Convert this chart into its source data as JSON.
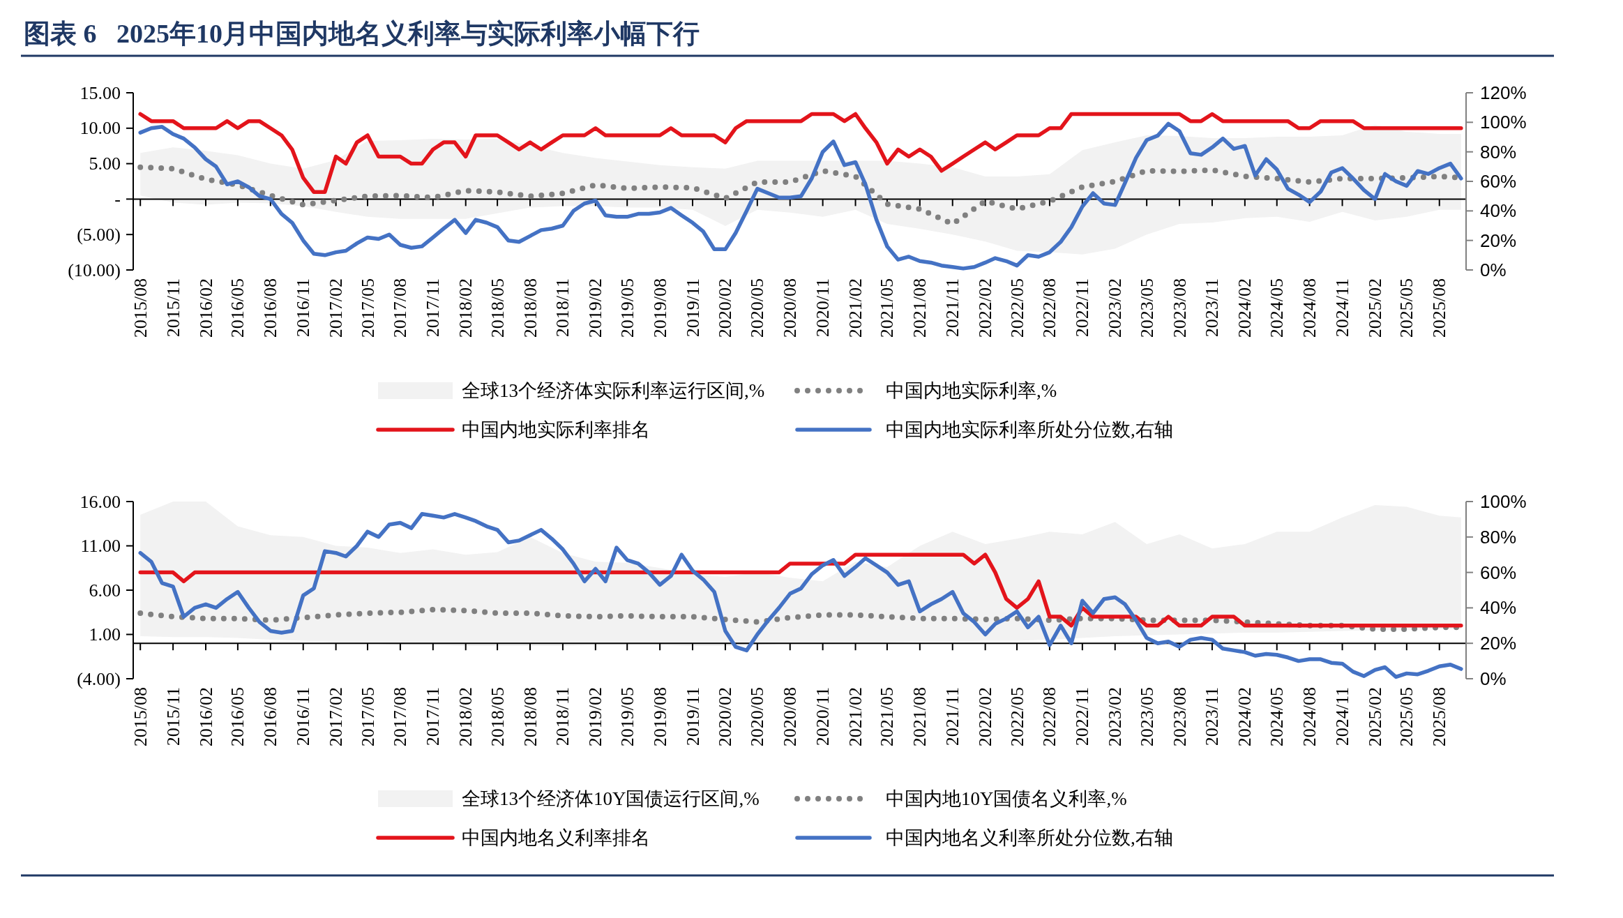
{
  "chart_data": [
    {
      "type": "line",
      "title": "图表 6   2025年10月中国内地名义利率与实际利率小幅下行",
      "x": [
        "2015-08",
        "2015-09",
        "2015-10",
        "2015-11",
        "2015-12",
        "2016-01",
        "2016-02",
        "2016-03",
        "2016-04",
        "2016-05",
        "2016-06",
        "2016-07",
        "2016-08",
        "2016-09",
        "2016-10",
        "2016-11",
        "2016-12",
        "2017-01",
        "2017-02",
        "2017-03",
        "2017-04",
        "2017-05",
        "2017-06",
        "2017-07",
        "2017-08",
        "2017-09",
        "2017-10",
        "2017-11",
        "2017-12",
        "2018-01",
        "2018-02",
        "2018-03",
        "2018-04",
        "2018-05",
        "2018-06",
        "2018-07",
        "2018-08",
        "2018-09",
        "2018-10",
        "2018-11",
        "2018-12",
        "2019-01",
        "2019-02",
        "2019-03",
        "2019-04",
        "2019-05",
        "2019-06",
        "2019-07",
        "2019-08",
        "2019-09",
        "2019-10",
        "2019-11",
        "2019-12",
        "2020-01",
        "2020-02",
        "2020-03",
        "2020-04",
        "2020-05",
        "2020-06",
        "2020-07",
        "2020-08",
        "2020-09",
        "2020-10",
        "2020-11",
        "2020-12",
        "2021-01",
        "2021-02",
        "2021-03",
        "2021-04",
        "2021-05",
        "2021-06",
        "2021-07",
        "2021-08",
        "2021-09",
        "2021-10",
        "2021-11",
        "2021-12",
        "2022-01",
        "2022-02",
        "2022-03",
        "2022-04",
        "2022-05",
        "2022-06",
        "2022-07",
        "2022-08",
        "2022-09",
        "2022-10",
        "2022-11",
        "2022-12",
        "2023-01",
        "2023-02",
        "2023-03",
        "2023-04",
        "2023-05",
        "2023-06",
        "2023-07",
        "2023-08",
        "2023-09",
        "2023-10",
        "2023-11",
        "2023-12",
        "2024-01",
        "2024-02",
        "2024-03",
        "2024-04",
        "2024-05",
        "2024-06",
        "2024-07",
        "2024-08",
        "2024-09",
        "2024-10",
        "2024-11",
        "2024-12",
        "2025-01",
        "2025-02",
        "2025-03",
        "2025-04",
        "2025-05",
        "2025-06",
        "2025-07",
        "2025-08",
        "2025-09",
        "2025-10"
      ],
      "xlim": [
        "2015-07-12",
        "2025-10-15"
      ],
      "xticks": [
        {
          "value": "2015-08",
          "label": "2015/08"
        },
        {
          "value": "2015-11",
          "label": "2015/11"
        },
        {
          "value": "2016-02",
          "label": "2016/02"
        },
        {
          "value": "2016-05",
          "label": "2016/05"
        },
        {
          "value": "2016-08",
          "label": "2016/08"
        },
        {
          "value": "2016-11",
          "label": "2016/11"
        },
        {
          "value": "2017-02",
          "label": "2017/02"
        },
        {
          "value": "2017-05",
          "label": "2017/05"
        },
        {
          "value": "2017-08",
          "label": "2017/08"
        },
        {
          "value": "2017-11",
          "label": "2017/11"
        },
        {
          "value": "2018-02",
          "label": "2018/02"
        },
        {
          "value": "2018-05",
          "label": "2018/05"
        },
        {
          "value": "2018-08",
          "label": "2018/08"
        },
        {
          "value": "2018-11",
          "label": "2018/11"
        },
        {
          "value": "2019-02",
          "label": "2019/02"
        },
        {
          "value": "2019-05",
          "label": "2019/05"
        },
        {
          "value": "2019-08",
          "label": "2019/08"
        },
        {
          "value": "2019-11",
          "label": "2019/11"
        },
        {
          "value": "2020-02",
          "label": "2020/02"
        },
        {
          "value": "2020-05",
          "label": "2020/05"
        },
        {
          "value": "2020-08",
          "label": "2020/08"
        },
        {
          "value": "2020-11",
          "label": "2020/11"
        },
        {
          "value": "2021-02",
          "label": "2021/02"
        },
        {
          "value": "2021-05",
          "label": "2021/05"
        },
        {
          "value": "2021-08",
          "label": "2021/08"
        },
        {
          "value": "2021-11",
          "label": "2021/11"
        },
        {
          "value": "2022-02",
          "label": "2022/02"
        },
        {
          "value": "2022-05",
          "label": "2022/05"
        },
        {
          "value": "2022-08",
          "label": "2022/08"
        },
        {
          "value": "2022-11",
          "label": "2022/11"
        },
        {
          "value": "2023-02",
          "label": "2023/02"
        },
        {
          "value": "2023-05",
          "label": "2023/05"
        },
        {
          "value": "2023-08",
          "label": "2023/08"
        },
        {
          "value": "2023-11",
          "label": "2023/11"
        },
        {
          "value": "2024-02",
          "label": "2024/02"
        },
        {
          "value": "2024-05",
          "label": "2024/05"
        },
        {
          "value": "2024-08",
          "label": "2024/08"
        },
        {
          "value": "2024-11",
          "label": "2024/11"
        },
        {
          "value": "2025-02",
          "label": "2025/02"
        },
        {
          "value": "2025-05",
          "label": "2025/05"
        },
        {
          "value": "2025-08",
          "label": "2025/08"
        }
      ],
      "ylim": [
        -10,
        15
      ],
      "yticks": [
        {
          "value": -10,
          "label": "(10.00)"
        },
        {
          "value": -5,
          "label": "(5.00)"
        },
        {
          "value": 0,
          "label": "-"
        },
        {
          "value": 5,
          "label": "5.00"
        },
        {
          "value": 10,
          "label": "10.00"
        },
        {
          "value": 15,
          "label": "15.00"
        }
      ],
      "y2lim": [
        0,
        120
      ],
      "y2ticks": [
        {
          "value": 0,
          "label": "0%"
        },
        {
          "value": 20,
          "label": "20%"
        },
        {
          "value": 40,
          "label": "40%"
        },
        {
          "value": 60,
          "label": "60%"
        },
        {
          "value": 80,
          "label": "80%"
        },
        {
          "value": 100,
          "label": "100%"
        },
        {
          "value": 120,
          "label": "120%"
        }
      ],
      "legend": "bottom",
      "series": [
        {
          "type": "line",
          "name": "全球13个经济体实际利率运行区间,%",
          "color": "#f2f2f2",
          "x": [
            "2015-08",
            "2015-11",
            "2016-02",
            "2016-05",
            "2016-08",
            "2016-11",
            "2017-02",
            "2017-05",
            "2017-08",
            "2017-11",
            "2018-02",
            "2018-05",
            "2018-08",
            "2018-11",
            "2019-02",
            "2019-05",
            "2019-08",
            "2019-11",
            "2020-02",
            "2020-05",
            "2020-08",
            "2020-11",
            "2021-02",
            "2021-05",
            "2021-08",
            "2021-11",
            "2022-02",
            "2022-05",
            "2022-08",
            "2022-11",
            "2023-02",
            "2023-05",
            "2023-08",
            "2023-11",
            "2024-02",
            "2024-05",
            "2024-08",
            "2024-11",
            "2025-02",
            "2025-05",
            "2025-08",
            "2025-10"
          ],
          "lower": [
            0.5,
            -0.5,
            -0.8,
            -0.5,
            -0.6,
            -1.0,
            -1.8,
            -2.5,
            -2.8,
            -2.8,
            -2.8,
            -2.0,
            -1.2,
            -1.0,
            -1.0,
            -1.2,
            -1.2,
            -1.5,
            -3.8,
            -1.5,
            -1.9,
            -2.5,
            -1.5,
            -3.5,
            -4.2,
            -5.0,
            -6.0,
            -7.3,
            -7.5,
            -7.8,
            -7.0,
            -5.0,
            -3.5,
            -3.3,
            -2.7,
            -2.5,
            -3.2,
            -1.8,
            -3.0,
            -2.5,
            -1.5,
            -1.5
          ],
          "values": [
            null,
            null,
            null,
            null,
            null,
            null,
            null,
            null,
            null,
            null,
            null,
            null,
            null,
            null,
            null,
            null,
            null,
            null,
            null,
            null,
            null,
            null,
            null,
            null,
            null,
            null,
            null,
            null,
            null,
            null,
            null,
            null,
            null,
            null,
            null,
            null,
            null,
            null,
            null,
            null,
            null,
            null
          ],
          "upper": [
            6.5,
            7.3,
            6.8,
            6.2,
            5.0,
            4.3,
            5.5,
            8.2,
            8.3,
            8.5,
            8.4,
            8.5,
            7.6,
            6.5,
            5.8,
            5.3,
            4.8,
            4.5,
            4.3,
            5.4,
            5.4,
            5.4,
            5.4,
            5.4,
            5.0,
            4.5,
            3.2,
            3.2,
            3.5,
            6.9,
            8.0,
            9.0,
            8.9,
            8.6,
            8.6,
            8.8,
            8.8,
            9.0,
            10.5,
            9.5,
            9.2,
            9.2
          ]
        },
        {
          "type": "line",
          "name": "中国内地实际利率,%",
          "color": "#808080",
          "line_style": "dotted",
          "x": [
            "2015-08",
            "2015-11",
            "2016-02",
            "2016-05",
            "2016-08",
            "2016-11",
            "2017-02",
            "2017-05",
            "2017-08",
            "2017-11",
            "2018-02",
            "2018-05",
            "2018-08",
            "2018-11",
            "2019-02",
            "2019-05",
            "2019-08",
            "2019-11",
            "2020-02",
            "2020-05",
            "2020-08",
            "2020-11",
            "2021-02",
            "2021-05",
            "2021-08",
            "2021-11",
            "2022-02",
            "2022-05",
            "2022-08",
            "2022-11",
            "2023-02",
            "2023-05",
            "2023-08",
            "2023-11",
            "2024-02",
            "2024-05",
            "2024-08",
            "2024-11",
            "2025-02",
            "2025-05",
            "2025-08",
            "2025-10"
          ],
          "values": [
            4.5,
            4.3,
            2.8,
            2.0,
            0.5,
            -0.8,
            -0.2,
            0.4,
            0.5,
            0.2,
            1.2,
            1.0,
            0.4,
            0.8,
            2.0,
            1.5,
            1.7,
            1.6,
            0.1,
            2.4,
            2.4,
            4.0,
            3.2,
            -0.7,
            -1.4,
            -3.5,
            -0.3,
            -1.4,
            -0.3,
            1.7,
            2.5,
            4.0,
            3.9,
            4.1,
            3.2,
            2.9,
            2.4,
            2.9,
            2.9,
            3.0,
            3.2,
            3.0
          ]
        },
        {
          "type": "line",
          "name": "中国内地实际利率排名",
          "color": "#e3141b",
          "values": [
            12,
            11,
            11,
            11,
            10,
            10,
            10,
            10,
            11,
            10,
            11,
            11,
            10,
            9,
            7,
            3,
            1,
            1,
            6,
            5,
            8,
            9,
            6,
            6,
            6,
            5,
            5,
            7,
            8,
            8,
            6,
            9,
            9,
            9,
            8,
            7,
            8,
            7,
            8,
            9,
            9,
            9,
            10,
            9,
            9,
            9,
            9,
            9,
            9,
            10,
            9,
            9,
            9,
            9,
            8,
            10,
            11,
            11,
            11,
            11,
            11,
            11,
            12,
            12,
            12,
            11,
            12,
            10,
            8,
            5,
            7,
            6,
            7,
            6,
            4,
            5,
            6,
            7,
            8,
            7,
            8,
            9,
            9,
            9,
            10,
            10,
            12,
            12,
            12,
            12,
            12,
            12,
            12,
            12,
            12,
            12,
            12,
            11,
            11,
            12,
            11,
            11,
            11,
            11,
            11,
            11,
            11,
            10,
            10,
            11,
            11,
            11,
            11,
            10,
            10,
            10,
            10,
            10,
            10,
            10,
            10,
            10,
            10
          ]
        },
        {
          "type": "line",
          "name": "中国内地实际利率所处分位数,右轴",
          "color": "#4472c4",
          "axis": "y2",
          "values": [
            93,
            96,
            97,
            92,
            89,
            83,
            75,
            70,
            58,
            60,
            56,
            50,
            48,
            38,
            32,
            20,
            11,
            10,
            12,
            13,
            18,
            22,
            21,
            24,
            17,
            15,
            16,
            22,
            28,
            34,
            25,
            34,
            32,
            29,
            20,
            19,
            23,
            27,
            28,
            30,
            40,
            45,
            47,
            37,
            36,
            36,
            38,
            38,
            39,
            42,
            37,
            32,
            26,
            14,
            14,
            25,
            40,
            55,
            52,
            49,
            49,
            50,
            62,
            80,
            87,
            71,
            73,
            58,
            34,
            16,
            7,
            9,
            6,
            5,
            3,
            2,
            1,
            2,
            5,
            8,
            6,
            3,
            10,
            9,
            12,
            19,
            29,
            43,
            52,
            45,
            44,
            59,
            76,
            88,
            91,
            99,
            94,
            79,
            78,
            83,
            89,
            82,
            84,
            64,
            75,
            68,
            55,
            51,
            46,
            53,
            66,
            69,
            62,
            54,
            48,
            65,
            60,
            57,
            67,
            65,
            69,
            72,
            62
          ]
        }
      ]
    },
    {
      "type": "line",
      "x": [
        "2015-08",
        "2015-09",
        "2015-10",
        "2015-11",
        "2015-12",
        "2016-01",
        "2016-02",
        "2016-03",
        "2016-04",
        "2016-05",
        "2016-06",
        "2016-07",
        "2016-08",
        "2016-09",
        "2016-10",
        "2016-11",
        "2016-12",
        "2017-01",
        "2017-02",
        "2017-03",
        "2017-04",
        "2017-05",
        "2017-06",
        "2017-07",
        "2017-08",
        "2017-09",
        "2017-10",
        "2017-11",
        "2017-12",
        "2018-01",
        "2018-02",
        "2018-03",
        "2018-04",
        "2018-05",
        "2018-06",
        "2018-07",
        "2018-08",
        "2018-09",
        "2018-10",
        "2018-11",
        "2018-12",
        "2019-01",
        "2019-02",
        "2019-03",
        "2019-04",
        "2019-05",
        "2019-06",
        "2019-07",
        "2019-08",
        "2019-09",
        "2019-10",
        "2019-11",
        "2019-12",
        "2020-01",
        "2020-02",
        "2020-03",
        "2020-04",
        "2020-05",
        "2020-06",
        "2020-07",
        "2020-08",
        "2020-09",
        "2020-10",
        "2020-11",
        "2020-12",
        "2021-01",
        "2021-02",
        "2021-03",
        "2021-04",
        "2021-05",
        "2021-06",
        "2021-07",
        "2021-08",
        "2021-09",
        "2021-10",
        "2021-11",
        "2021-12",
        "2022-01",
        "2022-02",
        "2022-03",
        "2022-04",
        "2022-05",
        "2022-06",
        "2022-07",
        "2022-08",
        "2022-09",
        "2022-10",
        "2022-11",
        "2022-12",
        "2023-01",
        "2023-02",
        "2023-03",
        "2023-04",
        "2023-05",
        "2023-06",
        "2023-07",
        "2023-08",
        "2023-09",
        "2023-10",
        "2023-11",
        "2023-12",
        "2024-01",
        "2024-02",
        "2024-03",
        "2024-04",
        "2024-05",
        "2024-06",
        "2024-07",
        "2024-08",
        "2024-09",
        "2024-10",
        "2024-11",
        "2024-12",
        "2025-01",
        "2025-02",
        "2025-03",
        "2025-04",
        "2025-05",
        "2025-06",
        "2025-07",
        "2025-08",
        "2025-09",
        "2025-10"
      ],
      "xlim": [
        "2015-07-12",
        "2025-10-15"
      ],
      "xticks": [
        {
          "value": "2015-08",
          "label": "2015/08"
        },
        {
          "value": "2015-11",
          "label": "2015/11"
        },
        {
          "value": "2016-02",
          "label": "2016/02"
        },
        {
          "value": "2016-05",
          "label": "2016/05"
        },
        {
          "value": "2016-08",
          "label": "2016/08"
        },
        {
          "value": "2016-11",
          "label": "2016/11"
        },
        {
          "value": "2017-02",
          "label": "2017/02"
        },
        {
          "value": "2017-05",
          "label": "2017/05"
        },
        {
          "value": "2017-08",
          "label": "2017/08"
        },
        {
          "value": "2017-11",
          "label": "2017/11"
        },
        {
          "value": "2018-02",
          "label": "2018/02"
        },
        {
          "value": "2018-05",
          "label": "2018/05"
        },
        {
          "value": "2018-08",
          "label": "2018/08"
        },
        {
          "value": "2018-11",
          "label": "2018/11"
        },
        {
          "value": "2019-02",
          "label": "2019/02"
        },
        {
          "value": "2019-05",
          "label": "2019/05"
        },
        {
          "value": "2019-08",
          "label": "2019/08"
        },
        {
          "value": "2019-11",
          "label": "2019/11"
        },
        {
          "value": "2020-02",
          "label": "2020/02"
        },
        {
          "value": "2020-05",
          "label": "2020/05"
        },
        {
          "value": "2020-08",
          "label": "2020/08"
        },
        {
          "value": "2020-11",
          "label": "2020/11"
        },
        {
          "value": "2021-02",
          "label": "2021/02"
        },
        {
          "value": "2021-05",
          "label": "2021/05"
        },
        {
          "value": "2021-08",
          "label": "2021/08"
        },
        {
          "value": "2021-11",
          "label": "2021/11"
        },
        {
          "value": "2022-02",
          "label": "2022/02"
        },
        {
          "value": "2022-05",
          "label": "2022/05"
        },
        {
          "value": "2022-08",
          "label": "2022/08"
        },
        {
          "value": "2022-11",
          "label": "2022/11"
        },
        {
          "value": "2023-02",
          "label": "2023/02"
        },
        {
          "value": "2023-05",
          "label": "2023/05"
        },
        {
          "value": "2023-08",
          "label": "2023/08"
        },
        {
          "value": "2023-11",
          "label": "2023/11"
        },
        {
          "value": "2024-02",
          "label": "2024/02"
        },
        {
          "value": "2024-05",
          "label": "2024/05"
        },
        {
          "value": "2024-08",
          "label": "2024/08"
        },
        {
          "value": "2024-11",
          "label": "2024/11"
        },
        {
          "value": "2025-02",
          "label": "2025/02"
        },
        {
          "value": "2025-05",
          "label": "2025/05"
        },
        {
          "value": "2025-08",
          "label": "2025/08"
        }
      ],
      "ylim": [
        -4,
        16
      ],
      "yticks": [
        {
          "value": -4,
          "label": "(4.00)"
        },
        {
          "value": 1,
          "label": "1.00"
        },
        {
          "value": 6,
          "label": "6.00"
        },
        {
          "value": 11,
          "label": "11.00"
        },
        {
          "value": 16,
          "label": "16.00"
        }
      ],
      "y2lim": [
        0,
        100
      ],
      "y2ticks": [
        {
          "value": 0,
          "label": "0%"
        },
        {
          "value": 20,
          "label": "20%"
        },
        {
          "value": 40,
          "label": "40%"
        },
        {
          "value": 60,
          "label": "60%"
        },
        {
          "value": 80,
          "label": "80%"
        },
        {
          "value": 100,
          "label": "100%"
        }
      ],
      "legend": "bottom",
      "series": [
        {
          "type": "line",
          "name": "全球13个经济体10Y国债运行区间,%",
          "color": "#f2f2f2",
          "x": [
            "2015-08",
            "2015-11",
            "2016-02",
            "2016-05",
            "2016-08",
            "2016-11",
            "2017-02",
            "2017-05",
            "2017-08",
            "2017-11",
            "2018-02",
            "2018-05",
            "2018-08",
            "2018-11",
            "2019-02",
            "2019-05",
            "2019-08",
            "2019-11",
            "2020-02",
            "2020-05",
            "2020-08",
            "2020-11",
            "2021-02",
            "2021-05",
            "2021-08",
            "2021-11",
            "2022-02",
            "2022-05",
            "2022-08",
            "2022-11",
            "2023-02",
            "2023-05",
            "2023-08",
            "2023-11",
            "2024-02",
            "2024-05",
            "2024-08",
            "2024-11",
            "2025-02",
            "2025-05",
            "2025-08",
            "2025-10"
          ],
          "lower": [
            0.8,
            0.7,
            0.7,
            0.6,
            0.4,
            0.3,
            0.1,
            0.0,
            -0.2,
            -0.2,
            -0.3,
            -0.3,
            -0.3,
            -0.3,
            -0.2,
            -0.2,
            -0.2,
            -0.3,
            -0.3,
            -0.2,
            0.0,
            0.0,
            0.1,
            0.1,
            0.2,
            0.2,
            0.3,
            0.3,
            0.4,
            0.6,
            0.8,
            0.9,
            1.0,
            1.1,
            1.2,
            1.2,
            1.3,
            1.4,
            1.5,
            1.5,
            1.6,
            1.6
          ],
          "values": [
            null,
            null,
            null,
            null,
            null,
            null,
            null,
            null,
            null,
            null,
            null,
            null,
            null,
            null,
            null,
            null,
            null,
            null,
            null,
            null,
            null,
            null,
            null,
            null,
            null,
            null,
            null,
            null,
            null,
            null,
            null,
            null,
            null,
            null,
            null,
            null,
            null,
            null,
            null,
            null,
            null,
            null
          ],
          "upper": [
            14.5,
            16,
            16,
            13.2,
            12.2,
            12,
            11,
            10.8,
            10.2,
            10.6,
            10.0,
            10.3,
            12,
            10.2,
            9.2,
            9.1,
            8.5,
            7.8,
            7.5,
            8,
            7.4,
            7.0,
            9.2,
            8.6,
            11,
            12.6,
            11.2,
            11.8,
            12.6,
            12.3,
            13.7,
            11.2,
            12.3,
            10.7,
            11.2,
            12.6,
            12.6,
            14.2,
            15.6,
            15.4,
            14.4,
            14.2
          ]
        },
        {
          "type": "line",
          "name": "中国内地10Y国债名义利率,%",
          "color": "#808080",
          "line_style": "dotted",
          "x": [
            "2015-08",
            "2015-11",
            "2016-02",
            "2016-05",
            "2016-08",
            "2016-11",
            "2017-02",
            "2017-05",
            "2017-08",
            "2017-11",
            "2018-02",
            "2018-05",
            "2018-08",
            "2018-11",
            "2019-02",
            "2019-05",
            "2019-08",
            "2019-11",
            "2020-02",
            "2020-05",
            "2020-08",
            "2020-11",
            "2021-02",
            "2021-05",
            "2021-08",
            "2021-11",
            "2022-02",
            "2022-05",
            "2022-08",
            "2022-11",
            "2023-02",
            "2023-05",
            "2023-08",
            "2023-11",
            "2024-02",
            "2024-05",
            "2024-08",
            "2024-11",
            "2025-02",
            "2025-05",
            "2025-08",
            "2025-10"
          ],
          "values": [
            3.4,
            3.0,
            2.8,
            2.8,
            2.6,
            2.9,
            3.2,
            3.4,
            3.5,
            3.8,
            3.7,
            3.4,
            3.4,
            3.1,
            3.0,
            3.1,
            3.0,
            3.0,
            2.7,
            2.4,
            2.9,
            3.2,
            3.2,
            3.0,
            2.8,
            2.8,
            2.7,
            2.8,
            2.6,
            2.8,
            2.8,
            2.6,
            2.6,
            2.6,
            2.4,
            2.2,
            2.0,
            2.0,
            1.6,
            1.6,
            1.8,
            1.8
          ]
        },
        {
          "type": "line",
          "name": "中国内地名义利率排名",
          "color": "#e3141b",
          "values": [
            8,
            8,
            8,
            8,
            7,
            8,
            8,
            8,
            8,
            8,
            8,
            8,
            8,
            8,
            8,
            8,
            8,
            8,
            8,
            8,
            8,
            8,
            8,
            8,
            8,
            8,
            8,
            8,
            8,
            8,
            8,
            8,
            8,
            8,
            8,
            8,
            8,
            8,
            8,
            8,
            8,
            8,
            8,
            8,
            8,
            8,
            8,
            8,
            8,
            8,
            8,
            8,
            8,
            8,
            8,
            8,
            8,
            8,
            8,
            8,
            9,
            9,
            9,
            9,
            9,
            9,
            10,
            10,
            10,
            10,
            10,
            10,
            10,
            10,
            10,
            10,
            10,
            9,
            10,
            8,
            5,
            4,
            5,
            7,
            3,
            3,
            2,
            4,
            3,
            3,
            3,
            3,
            3,
            2,
            2,
            3,
            2,
            2,
            2,
            3,
            3,
            3,
            2,
            2,
            2,
            2,
            2,
            2,
            2,
            2,
            2,
            2,
            2,
            2,
            2,
            2,
            2,
            2,
            2,
            2,
            2,
            2,
            2
          ]
        },
        {
          "type": "line",
          "name": "中国内地名义利率所处分位数,右轴",
          "color": "#4472c4",
          "axis": "y2",
          "values": [
            71,
            66,
            54,
            52,
            35,
            40,
            42,
            40,
            45,
            49,
            40,
            32,
            27,
            26,
            27,
            47,
            51,
            72,
            71,
            69,
            75,
            83,
            80,
            87,
            88,
            85,
            93,
            92,
            91,
            93,
            91,
            89,
            86,
            84,
            77,
            78,
            81,
            84,
            79,
            73,
            65,
            55,
            62,
            55,
            74,
            67,
            65,
            60,
            53,
            58,
            70,
            61,
            56,
            49,
            27,
            18,
            16,
            25,
            33,
            40,
            48,
            51,
            59,
            64,
            67,
            58,
            63,
            68,
            64,
            60,
            53,
            55,
            38,
            42,
            45,
            49,
            37,
            32,
            25,
            31,
            34,
            38,
            29,
            35,
            19,
            30,
            20,
            44,
            37,
            45,
            46,
            42,
            33,
            23,
            20,
            21,
            18,
            22,
            23,
            22,
            17,
            16,
            15,
            13,
            14,
            13.5,
            12,
            10,
            11,
            11,
            9,
            8.5,
            4,
            1.5,
            5,
            6.5,
            1,
            3,
            2.5,
            4.5,
            7,
            8,
            5.5
          ]
        }
      ]
    }
  ]
}
